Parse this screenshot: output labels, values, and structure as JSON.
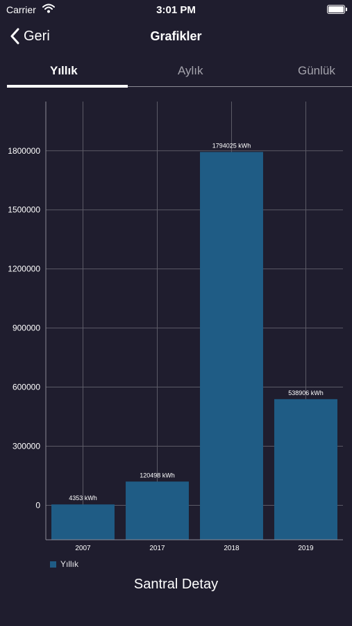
{
  "status_bar": {
    "carrier": "Carrier",
    "time": "3:01 PM"
  },
  "nav": {
    "back_label": "Geri",
    "title": "Grafikler"
  },
  "tabs": [
    {
      "label": "Yıllık",
      "active": true
    },
    {
      "label": "Aylık",
      "active": false
    },
    {
      "label": "Günlük",
      "active": false
    }
  ],
  "colors": {
    "background": "#1f1d2e",
    "bar": "#1f5c85",
    "grid": "#5c5b67",
    "axis": "#8c8b95",
    "text": "#ffffff"
  },
  "chart_data": {
    "type": "bar",
    "categories": [
      "2007",
      "2017",
      "2018",
      "2019"
    ],
    "values": [
      4353,
      120498,
      1794025,
      538906
    ],
    "data_labels": [
      "4353 kWh",
      "120498 kWh",
      "1794025 kWh",
      "538906 kWh"
    ],
    "y_ticks": [
      0,
      300000,
      600000,
      900000,
      1200000,
      1500000,
      1800000
    ],
    "ylim": [
      -175000,
      2050000
    ],
    "legend": {
      "position": "bottom-left",
      "entries": [
        "Yıllık"
      ]
    },
    "grid": true
  },
  "footer": {
    "title": "Santral Detay"
  }
}
